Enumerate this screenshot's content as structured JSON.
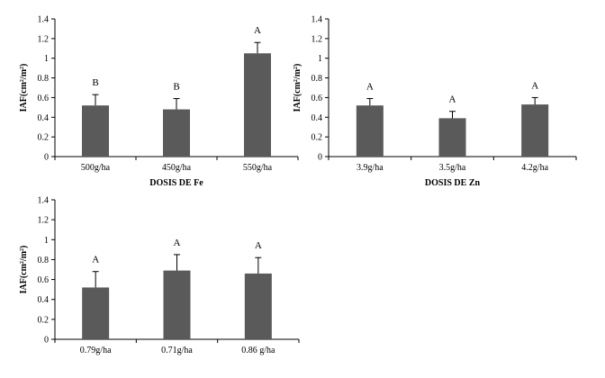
{
  "chart_data": [
    {
      "type": "bar",
      "title": "",
      "xlabel": "DOSIS DE Fe",
      "ylabel": "IAF(cm²/m²)",
      "ylim": [
        0,
        1.4
      ],
      "yticks": [
        "0",
        "0.2",
        "0.4",
        "0.6",
        "0.8",
        "1",
        "1.2",
        "1.4"
      ],
      "categories": [
        "500g/ha",
        "450g/ha",
        "550g/ha"
      ],
      "values": [
        0.52,
        0.48,
        1.05
      ],
      "errors": [
        0.11,
        0.11,
        0.11
      ],
      "significance": [
        "B",
        "B",
        "A"
      ],
      "bar_color": "#5a5a5a",
      "grid": false
    },
    {
      "type": "bar",
      "title": "",
      "xlabel": "DOSIS DE Zn",
      "ylabel": "IAF(cm²/m²)",
      "ylim": [
        0,
        1.4
      ],
      "yticks": [
        "0",
        "0.2",
        "0.4",
        "0.6",
        "0.8",
        "1",
        "1.2",
        "1.4"
      ],
      "categories": [
        "3.9g/ha",
        "3.5g/ha",
        "4.2g/ha"
      ],
      "values": [
        0.52,
        0.39,
        0.53
      ],
      "errors": [
        0.07,
        0.07,
        0.07
      ],
      "significance": [
        "A",
        "A",
        "A"
      ],
      "bar_color": "#5a5a5a",
      "grid": false
    },
    {
      "type": "bar",
      "title": "",
      "xlabel": "",
      "ylabel": "IAF(cm²/m²)",
      "ylim": [
        0,
        1.4
      ],
      "yticks": [
        "0",
        "0.2",
        "0.4",
        "0.6",
        "0.8",
        "1",
        "1.2",
        "1.4"
      ],
      "categories": [
        "0.79g/ha",
        "0.71g/ha",
        "0.86 g/ha"
      ],
      "values": [
        0.52,
        0.69,
        0.66
      ],
      "errors": [
        0.16,
        0.16,
        0.16
      ],
      "significance": [
        "A",
        "A",
        "A"
      ],
      "bar_color": "#5a5a5a",
      "grid": false
    }
  ]
}
